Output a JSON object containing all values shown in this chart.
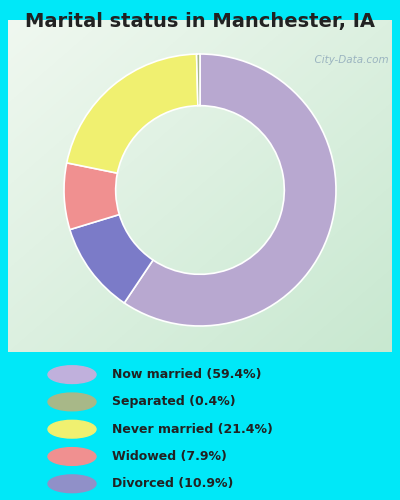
{
  "title": "Marital status in Manchester, IA",
  "slices": [
    59.4,
    10.9,
    7.9,
    21.4,
    0.4
  ],
  "slice_order_labels": [
    "Now married",
    "Divorced",
    "Widowed",
    "Never married",
    "Separated"
  ],
  "colors": [
    "#b8a8d0",
    "#7b7bc8",
    "#f09090",
    "#f0f070",
    "#a8b888"
  ],
  "legend_labels": [
    "Now married (59.4%)",
    "Separated (0.4%)",
    "Never married (21.4%)",
    "Widowed (7.9%)",
    "Divorced (10.9%)"
  ],
  "legend_colors": [
    "#c0b0dc",
    "#a8b888",
    "#f0f070",
    "#f09090",
    "#9090c8"
  ],
  "startangle": 90,
  "donut_width": 0.38,
  "title_fontsize": 14,
  "title_fontweight": "bold",
  "outer_bg_color": "#00e8f8",
  "watermark": "  City-Data.com"
}
